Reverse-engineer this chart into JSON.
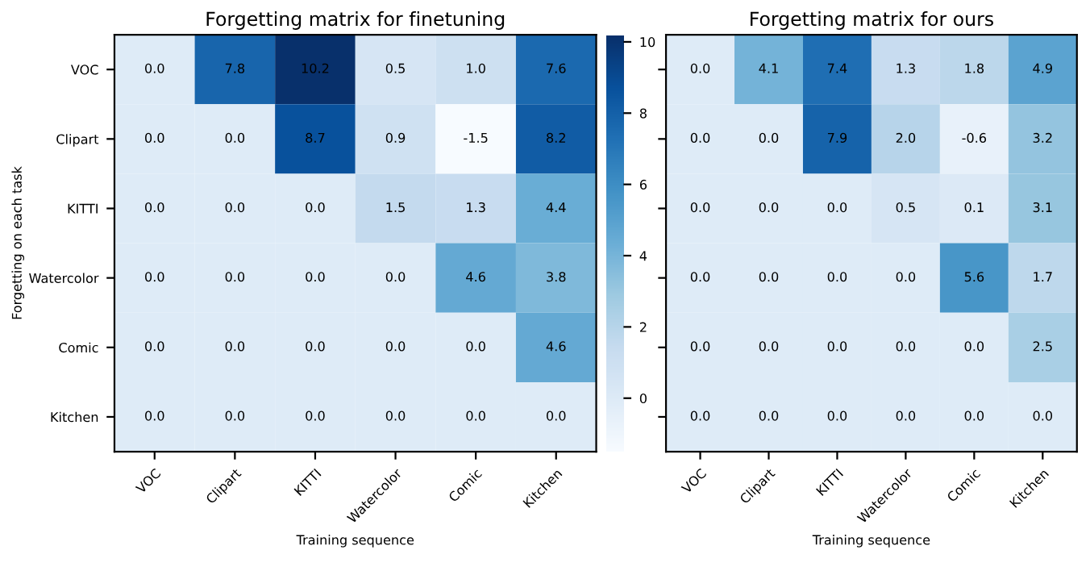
{
  "chart_data": [
    {
      "type": "heatmap",
      "title": "Forgetting matrix for finetuning",
      "xlabel": "Training sequence",
      "ylabel": "Forgetting on each task",
      "categories": [
        "VOC",
        "Clipart",
        "KITTI",
        "Watercolor",
        "Comic",
        "Kitchen"
      ],
      "y_categories": [
        "VOC",
        "Clipart",
        "KITTI",
        "Watercolor",
        "Comic",
        "Kitchen"
      ],
      "cells": [
        [
          0.0,
          7.8,
          10.2,
          0.5,
          1.0,
          7.6
        ],
        [
          0.0,
          0.0,
          8.7,
          0.9,
          -1.5,
          8.2
        ],
        [
          0.0,
          0.0,
          0.0,
          1.5,
          1.3,
          4.4
        ],
        [
          0.0,
          0.0,
          0.0,
          0.0,
          4.6,
          3.8
        ],
        [
          0.0,
          0.0,
          0.0,
          0.0,
          0.0,
          4.6
        ],
        [
          0.0,
          0.0,
          0.0,
          0.0,
          0.0,
          0.0
        ]
      ],
      "cell_labels": [
        [
          "0.0",
          "7.8",
          "10.2",
          "0.5",
          "1.0",
          "7.6"
        ],
        [
          "0.0",
          "0.0",
          "8.7",
          "0.9",
          "-1.5",
          "8.2"
        ],
        [
          "0.0",
          "0.0",
          "0.0",
          "1.5",
          "1.3",
          "4.4"
        ],
        [
          "0.0",
          "0.0",
          "0.0",
          "0.0",
          "4.6",
          "3.8"
        ],
        [
          "0.0",
          "0.0",
          "0.0",
          "0.0",
          "0.0",
          "4.6"
        ],
        [
          "0.0",
          "0.0",
          "0.0",
          "0.0",
          "0.0",
          "0.0"
        ]
      ],
      "clim": [
        -1.5,
        10.2
      ],
      "cticks": [
        0,
        2,
        4,
        6,
        8,
        10
      ]
    },
    {
      "type": "heatmap",
      "title": "Forgetting matrix for ours",
      "xlabel": "Training sequence",
      "tick_labels": "x",
      "categories": [
        "VOC",
        "Clipart",
        "KITTI",
        "Watercolor",
        "Comic",
        "Kitchen"
      ],
      "y_categories": [
        null,
        null,
        null,
        null,
        null,
        null
      ],
      "cells": [
        [
          0.0,
          4.1,
          7.4,
          1.3,
          1.8,
          4.9
        ],
        [
          0.0,
          0.0,
          7.9,
          2.0,
          -0.6,
          3.2
        ],
        [
          0.0,
          0.0,
          0.0,
          0.5,
          0.1,
          3.1
        ],
        [
          0.0,
          0.0,
          0.0,
          0.0,
          5.6,
          1.7
        ],
        [
          0.0,
          0.0,
          0.0,
          0.0,
          0.0,
          2.5
        ],
        [
          0.0,
          0.0,
          0.0,
          0.0,
          0.0,
          0.0
        ]
      ],
      "cell_labels": [
        [
          "0.0",
          "4.1",
          "7.4",
          "1.3",
          "1.8",
          "4.9"
        ],
        [
          "0.0",
          "0.0",
          "7.9",
          "2.0",
          "-0.6",
          "3.2"
        ],
        [
          "0.0",
          "0.0",
          "0.0",
          "0.5",
          "0.1",
          "3.1"
        ],
        [
          "0.0",
          "0.0",
          "0.0",
          "0.0",
          "5.6",
          "1.7"
        ],
        [
          "0.0",
          "0.0",
          "0.0",
          "0.0",
          "0.0",
          "2.5"
        ],
        [
          "0.0",
          "0.0",
          "0.0",
          "0.0",
          "0.0",
          "0.0"
        ]
      ]
    }
  ]
}
